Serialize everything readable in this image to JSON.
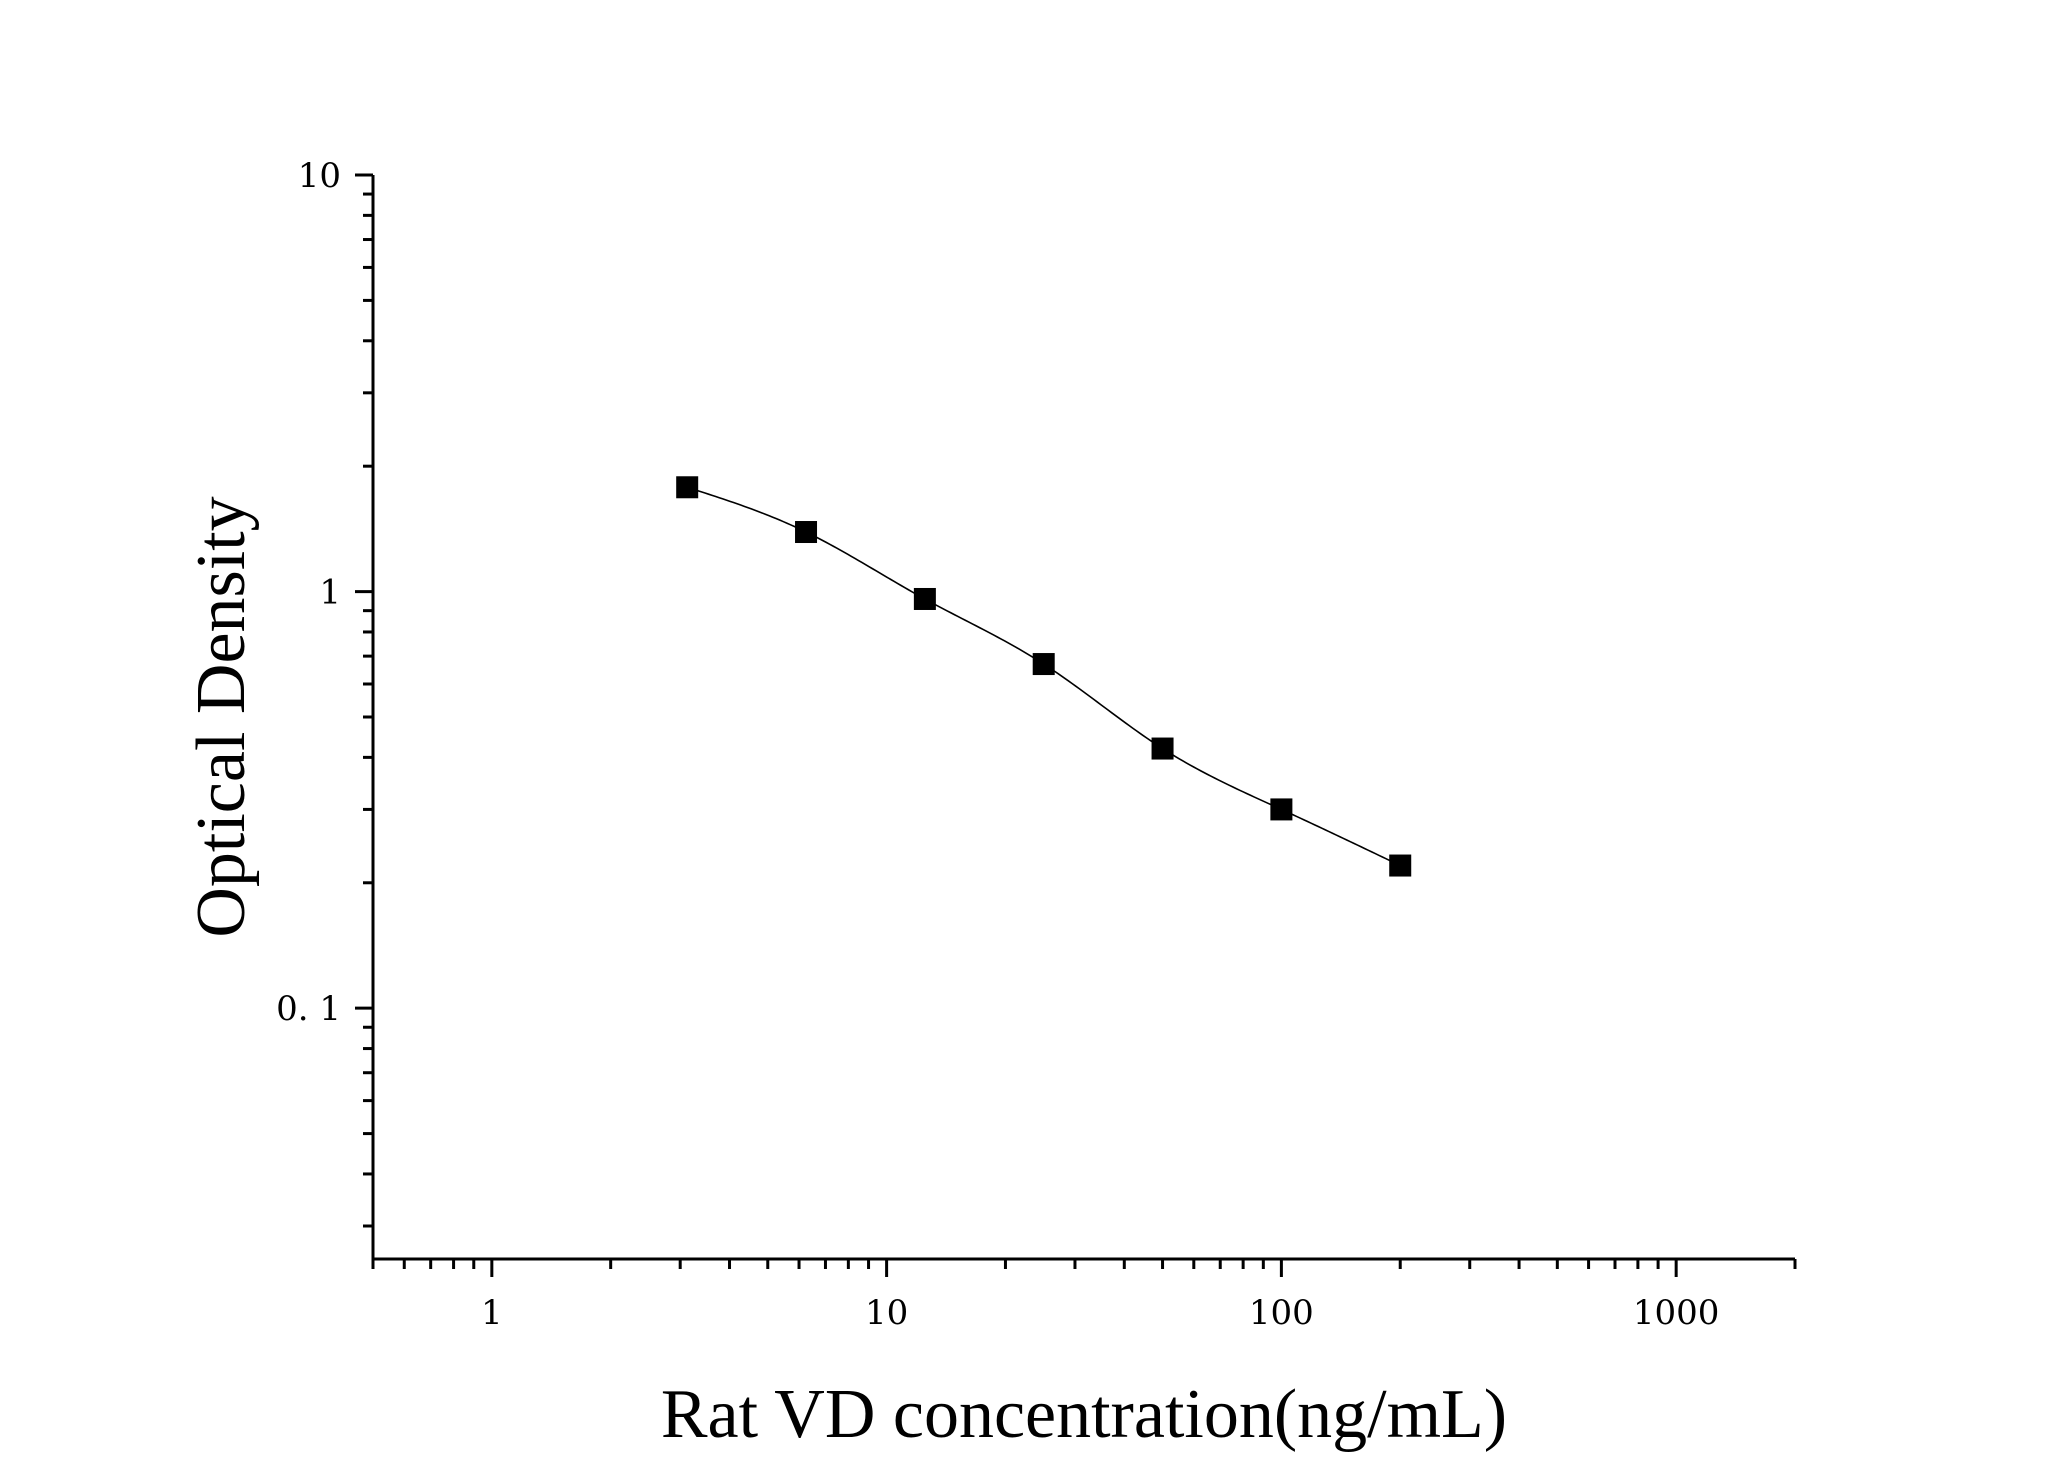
{
  "chart_data": {
    "type": "scatter",
    "title": "",
    "xlabel": "Rat VD concentration(ng/mL)",
    "ylabel": "Optical Density",
    "x_scale": "log",
    "y_scale": "log",
    "xlim": [
      0.5,
      2000
    ],
    "ylim": [
      0.025,
      10
    ],
    "x_tick_labels": [
      "1",
      "10",
      "100",
      "1000"
    ],
    "y_tick_labels": [
      "0. 1",
      "1",
      "10"
    ],
    "grid": false,
    "legend": "none",
    "series": [
      {
        "x": [
          3.125,
          6.25,
          12.5,
          25,
          50,
          100,
          200
        ],
        "y": [
          1.78,
          1.39,
          0.96,
          0.67,
          0.42,
          0.3,
          0.22
        ],
        "marker": "square",
        "fit_curve": true
      }
    ],
    "colors": {
      "marker": "#000000",
      "line": "#000000",
      "axis": "#000000"
    }
  }
}
